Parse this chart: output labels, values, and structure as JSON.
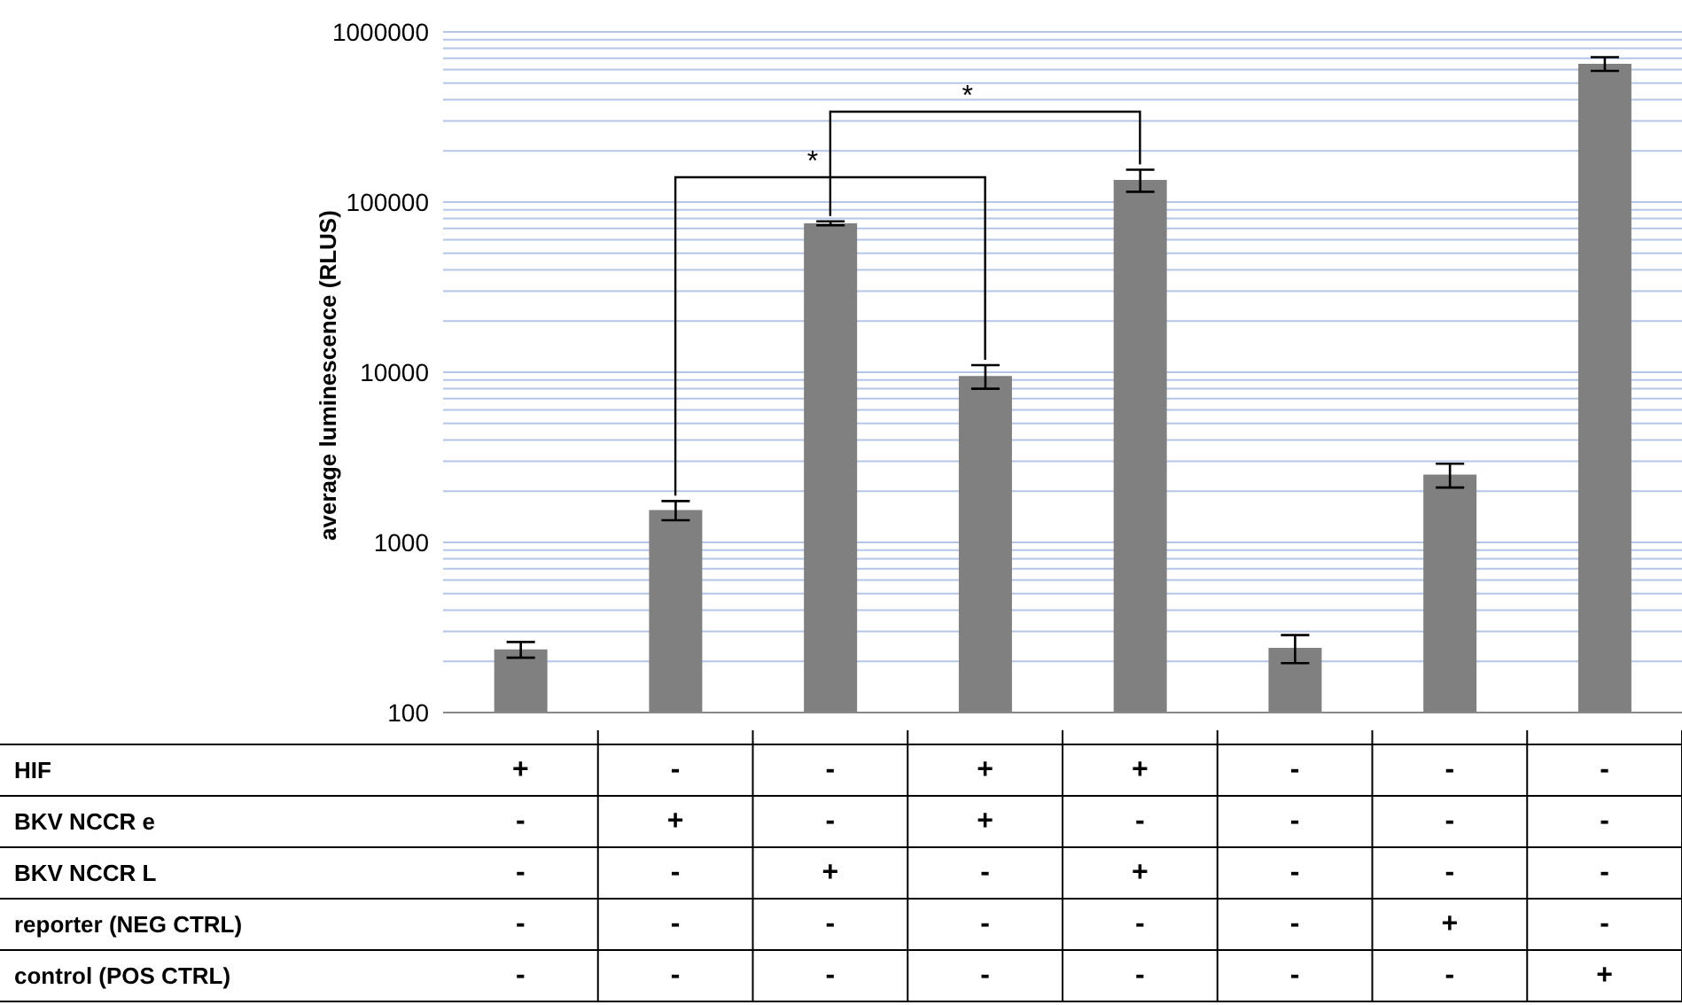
{
  "chart_data": {
    "type": "bar",
    "ylabel": "average luminescence (RLUS)",
    "categories": [
      "+\n-\n-\n-\n-",
      "-\n+\n-\n-\n-",
      "-\n-\n+\n-\n-",
      "+\n+\n-\n-\n-",
      "+\n-\n+\n-\n-",
      "-\n-\n-\n-\n-",
      "-\n-\n-\n+\n-",
      "-\n-\n-\n-\n+"
    ],
    "values": [
      235,
      1550,
      75000,
      9500,
      135000,
      240,
      2500,
      650000
    ],
    "errors": [
      25,
      200,
      2000,
      1500,
      20000,
      45,
      400,
      60000
    ],
    "color": "#808080",
    "log": "y",
    "ylim": [
      100,
      1000000
    ],
    "yticks": [
      100,
      {
        "value": 200,
        "label": null
      },
      {
        "value": 300,
        "label": null
      },
      {
        "value": 400,
        "label": null
      },
      {
        "value": 500,
        "label": null
      },
      {
        "value": 600,
        "label": null
      },
      {
        "value": 700,
        "label": null
      },
      {
        "value": 800,
        "label": null
      },
      {
        "value": 900,
        "label": null
      },
      1000,
      {
        "value": 2000,
        "label": null
      },
      {
        "value": 3000,
        "label": null
      },
      {
        "value": 4000,
        "label": null
      },
      {
        "value": 5000,
        "label": null
      },
      {
        "value": 6000,
        "label": null
      },
      {
        "value": 7000,
        "label": null
      },
      {
        "value": 8000,
        "label": null
      },
      {
        "value": 9000,
        "label": null
      },
      10000,
      {
        "value": 20000,
        "label": null
      },
      {
        "value": 30000,
        "label": null
      },
      {
        "value": 40000,
        "label": null
      },
      {
        "value": 50000,
        "label": null
      },
      {
        "value": 60000,
        "label": null
      },
      {
        "value": 70000,
        "label": null
      },
      {
        "value": 80000,
        "label": null
      },
      {
        "value": 90000,
        "label": null
      },
      100000,
      {
        "value": 200000,
        "label": null
      },
      {
        "value": 300000,
        "label": null
      },
      {
        "value": 400000,
        "label": null
      },
      {
        "value": 500000,
        "label": null
      },
      {
        "value": 600000,
        "label": null
      },
      {
        "value": 700000,
        "label": null
      },
      {
        "value": 800000,
        "label": null
      },
      {
        "value": 900000,
        "label": null
      },
      1000000
    ],
    "grid": "y",
    "legend": false,
    "tick_labels": "y",
    "annotations": [
      "*",
      "*",
      "HIF",
      "BKV NCCR e",
      "BKV NCCR L",
      "reporter (NEG CTRL)",
      "control (POS CTRL)"
    ]
  }
}
